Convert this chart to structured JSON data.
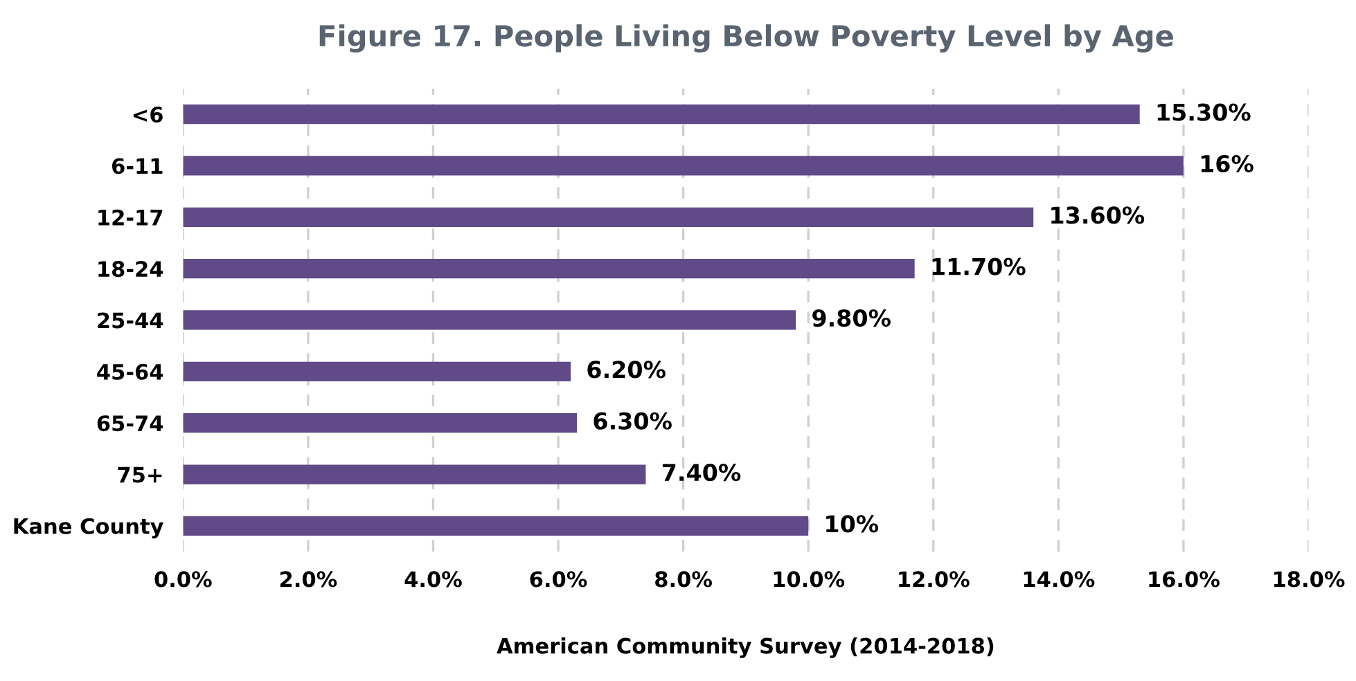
{
  "chart_data": {
    "type": "bar",
    "orientation": "horizontal",
    "title": "Figure 17. People Living Below Poverty Level by Age",
    "xlabel": "American Community Survey (2014-2018)",
    "categories": [
      "<6",
      "6-11",
      "12-17",
      "18-24",
      "25-44",
      "45-64",
      "65-74",
      "75+",
      "Kane County"
    ],
    "values": [
      15.3,
      16,
      13.6,
      11.7,
      9.8,
      6.2,
      6.3,
      7.4,
      10
    ],
    "value_labels": [
      "15.30%",
      "16%",
      "13.60%",
      "11.70%",
      "9.80%",
      "6.20%",
      "6.30%",
      "7.40%",
      "10%"
    ],
    "color": "#604a87",
    "xlim": [
      0,
      18
    ],
    "xticks": [
      {
        "value": 0,
        "label": "0.0%"
      },
      {
        "value": 2,
        "label": "2.0%"
      },
      {
        "value": 4,
        "label": "4.0%"
      },
      {
        "value": 6,
        "label": "6.0%"
      },
      {
        "value": 8,
        "label": "8.0%"
      },
      {
        "value": 10,
        "label": "10.0%"
      },
      {
        "value": 12,
        "label": "12.0%"
      },
      {
        "value": 14,
        "label": "14.0%"
      },
      {
        "value": 16,
        "label": "16.0%"
      },
      {
        "value": 18,
        "label": "18.0%"
      }
    ],
    "grid": "x"
  }
}
